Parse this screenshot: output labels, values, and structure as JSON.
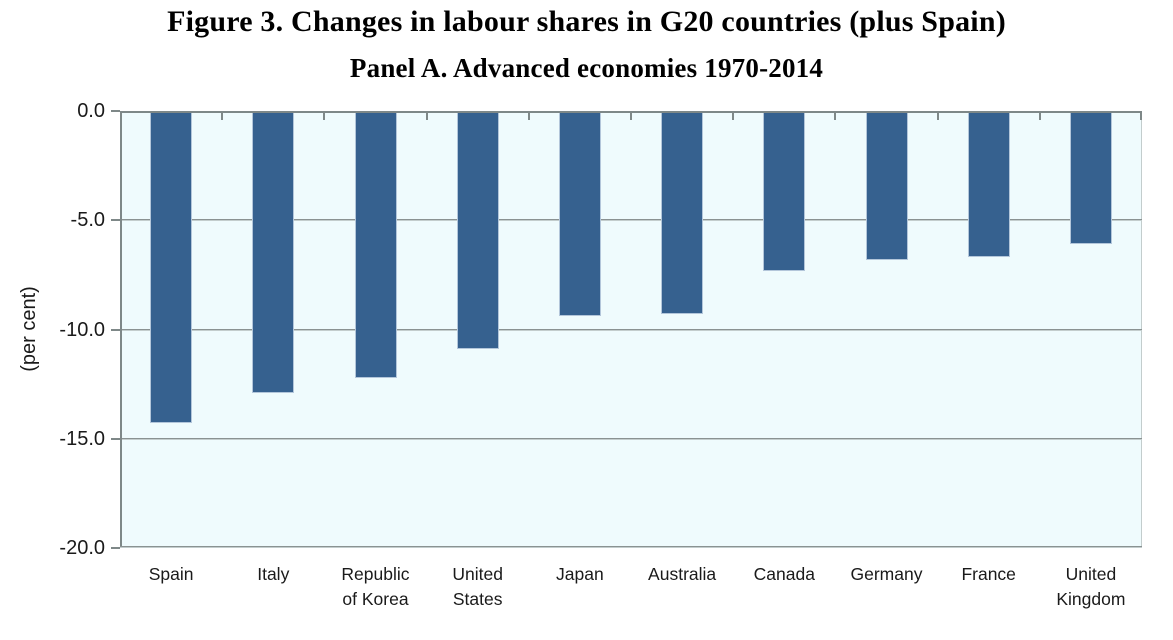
{
  "chart_data": {
    "type": "bar",
    "title": "Figure 3. Changes in labour shares in G20 countries (plus Spain)",
    "subtitle": "Panel A. Advanced economies 1970-2014",
    "ylabel": "(per cent)",
    "xlabel": "",
    "ylim": [
      -20.0,
      0.0
    ],
    "yticks": [
      0.0,
      -5.0,
      -10.0,
      -15.0,
      -20.0
    ],
    "ytick_labels": [
      "0.0",
      "-5.0",
      "-10.0",
      "-15.0",
      "-20.0"
    ],
    "grid": true,
    "legend": null,
    "categories": [
      "Spain",
      "Italy",
      "Republic of Korea",
      "United States",
      "Japan",
      "Australia",
      "Canada",
      "Germany",
      "France",
      "United Kingdom"
    ],
    "category_label_lines": [
      [
        "Spain"
      ],
      [
        "Italy"
      ],
      [
        "Republic",
        "of Korea"
      ],
      [
        "United",
        "States"
      ],
      [
        "Japan"
      ],
      [
        "Australia"
      ],
      [
        "Canada"
      ],
      [
        "Germany"
      ],
      [
        "France"
      ],
      [
        "United",
        "Kingdom"
      ]
    ],
    "values": [
      -14.3,
      -12.9,
      -12.2,
      -10.9,
      -9.4,
      -9.3,
      -7.3,
      -6.8,
      -6.7,
      -6.1
    ],
    "colors": {
      "bar_fill": "#36618f",
      "bar_border": "#b3c6da",
      "plot_background": "#effbfd",
      "gridline": "#8a9292",
      "axis": "#7e8888",
      "text": "#000000"
    }
  }
}
